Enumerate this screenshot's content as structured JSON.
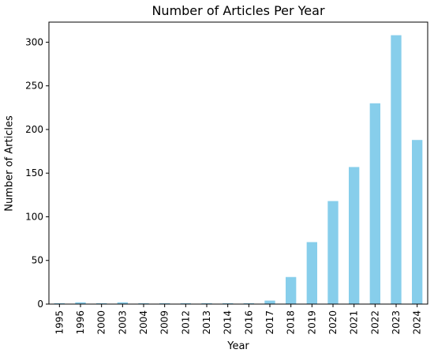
{
  "chart_data": {
    "type": "bar",
    "title": "Number of Articles Per Year",
    "xlabel": "Year",
    "ylabel": "Number of Articles",
    "categories": [
      "1995",
      "1996",
      "2000",
      "2003",
      "2004",
      "2009",
      "2012",
      "2013",
      "2014",
      "2016",
      "2017",
      "2018",
      "2019",
      "2020",
      "2021",
      "2022",
      "2023",
      "2024"
    ],
    "values": [
      1,
      2,
      1,
      2,
      1,
      1,
      1,
      1,
      1,
      1,
      4,
      31,
      71,
      118,
      157,
      230,
      308,
      188
    ],
    "ylim": [
      0,
      323
    ],
    "yticks": [
      0,
      50,
      100,
      150,
      200,
      250,
      300
    ],
    "bar_color": "#87ceeb",
    "grid": false
  }
}
